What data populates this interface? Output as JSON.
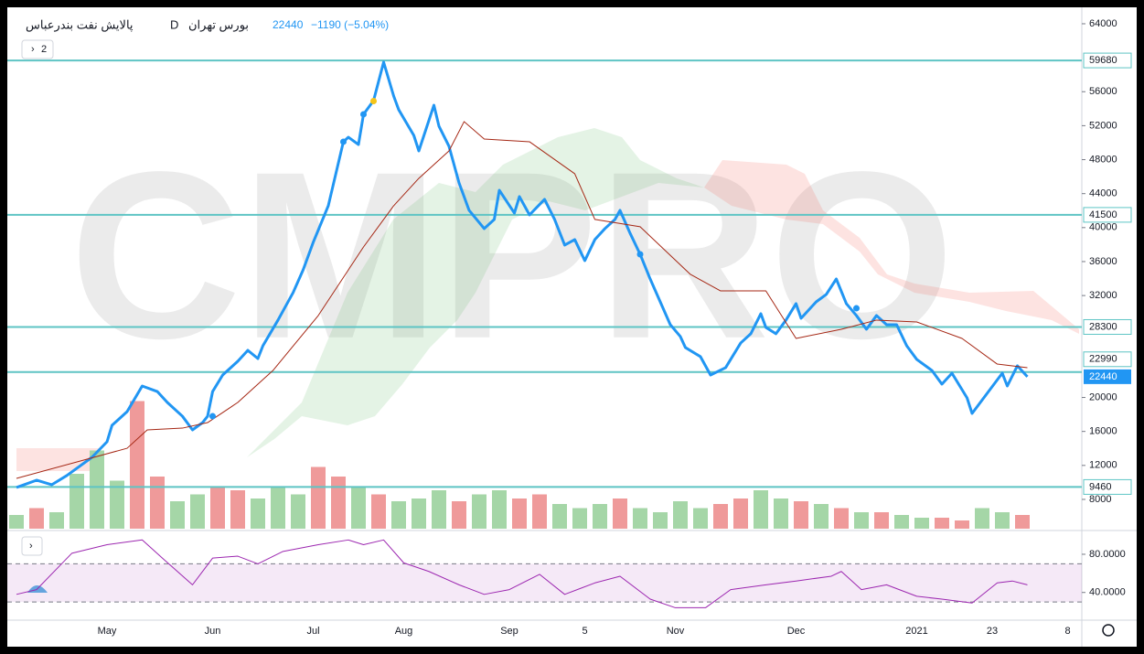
{
  "header": {
    "symbol": "پالایش نفت بندرعباس",
    "interval": "D",
    "exchange": "بورس تهران",
    "price": 22440,
    "change": "−1190 (−5.04%)"
  },
  "watermark": "CMPRO",
  "legend_toggle": "2",
  "chart_data": [
    {
      "type": "line",
      "xlim": [
        0,
        212
      ],
      "ylim": [
        4550,
        65720
      ],
      "xticks": [
        {
          "value": 18,
          "label": "May"
        },
        {
          "value": 39,
          "label": "Jun"
        },
        {
          "value": 59,
          "label": "Jul"
        },
        {
          "value": 77,
          "label": "Aug"
        },
        {
          "value": 98,
          "label": "Sep"
        },
        {
          "value": 113,
          "label": "5"
        },
        {
          "value": 131,
          "label": "Nov"
        },
        {
          "value": 155,
          "label": "Dec"
        },
        {
          "value": 179,
          "label": "2021"
        },
        {
          "value": 194,
          "label": "23"
        },
        {
          "value": 209,
          "label": "8"
        }
      ],
      "yticks": [
        64000,
        56000,
        52000,
        48000,
        44000,
        40000,
        36000,
        32000,
        20000,
        16000,
        12000,
        8000
      ],
      "series": [
        {
          "color": "#2196f3",
          "x": [
            0,
            4,
            7,
            10,
            15,
            18,
            19,
            22,
            25,
            28,
            30,
            33,
            35,
            37,
            38,
            39,
            41,
            44,
            46,
            48,
            49,
            52,
            55,
            57,
            59,
            62,
            65,
            66,
            68,
            69,
            71,
            73,
            75,
            76,
            79,
            80,
            83,
            84,
            86,
            88,
            90,
            93,
            95,
            96,
            99,
            100,
            102,
            105,
            107,
            109,
            111,
            113,
            115,
            117,
            119,
            120,
            122,
            124,
            126,
            128,
            130,
            132,
            133,
            136,
            138,
            141,
            142,
            144,
            146,
            148,
            149,
            151,
            153,
            155,
            156,
            159,
            161,
            163,
            165,
            167,
            169,
            171,
            173,
            175,
            177,
            179,
            182,
            184,
            186,
            189,
            190,
            193,
            196,
            197,
            199,
            201
          ],
          "values": [
            9400,
            10260,
            9720,
            10800,
            12950,
            14780,
            16720,
            18330,
            21350,
            20700,
            19410,
            17790,
            16180,
            17040,
            17790,
            20700,
            22640,
            24260,
            25550,
            24580,
            26090,
            29110,
            32340,
            35030,
            38260,
            42570,
            50110,
            50640,
            49780,
            53340,
            54950,
            59480,
            55490,
            53880,
            50860,
            49030,
            54410,
            51940,
            49570,
            45260,
            42030,
            39880,
            40960,
            44400,
            41710,
            43650,
            41500,
            43330,
            40960,
            37940,
            38590,
            36110,
            38590,
            39880,
            40960,
            42030,
            39340,
            36860,
            33950,
            31260,
            28570,
            27170,
            25880,
            24800,
            22640,
            23510,
            24480,
            26420,
            27500,
            29860,
            28250,
            27500,
            29110,
            31050,
            29320,
            31260,
            32130,
            33950,
            31050,
            29650,
            28030,
            29650,
            28570,
            28570,
            26090,
            24480,
            23190,
            21570,
            22860,
            19950,
            18120,
            20490,
            22860,
            21350,
            23730,
            22440
          ]
        },
        {
          "color": "#a52714",
          "x": [
            0,
            22,
            26,
            33,
            38,
            44,
            51,
            60,
            69,
            75,
            80,
            86,
            89,
            93,
            102,
            111,
            115,
            124,
            134,
            140,
            149,
            155,
            164,
            171,
            179,
            188,
            195,
            201
          ],
          "values": [
            10470,
            14020,
            16180,
            16390,
            17040,
            19410,
            23180,
            29640,
            37720,
            42570,
            45800,
            49030,
            52480,
            50430,
            50110,
            46340,
            40960,
            40100,
            34490,
            32550,
            32550,
            26950,
            28030,
            29110,
            28890,
            26950,
            23930,
            23500
          ]
        }
      ],
      "levels": {
        "values": [
          59680,
          41500,
          28300,
          22990,
          9460
        ],
        "color": "#5ec4c4"
      },
      "markers": {
        "x": [
          39,
          65,
          69,
          71,
          124,
          167
        ],
        "values": [
          17790,
          50110,
          53340,
          54900,
          36860,
          30500
        ],
        "colors": [
          "#2196f3",
          "#2196f3",
          "#2196f3",
          "#f5c518",
          "#2196f3",
          "#2196f3"
        ]
      },
      "volume": {
        "ylim": [
          0,
          100
        ],
        "x": [
          0,
          4,
          8,
          12,
          16,
          20,
          24,
          28,
          32,
          36,
          40,
          44,
          48,
          52,
          56,
          60,
          64,
          68,
          72,
          76,
          80,
          84,
          88,
          92,
          96,
          100,
          104,
          108,
          112,
          116,
          120,
          124,
          128,
          132,
          136,
          140,
          144,
          148,
          152,
          156,
          160,
          164,
          168,
          172,
          176,
          180,
          184,
          188,
          192,
          196,
          200
        ],
        "values": [
          10,
          15,
          12,
          40,
          57,
          35,
          93,
          38,
          20,
          25,
          30,
          28,
          22,
          30,
          25,
          45,
          38,
          30,
          25,
          20,
          22,
          28,
          20,
          25,
          28,
          22,
          25,
          18,
          15,
          18,
          22,
          15,
          12,
          20,
          15,
          18,
          22,
          28,
          22,
          20,
          18,
          15,
          12,
          12,
          10,
          8,
          8,
          6,
          15,
          12,
          10
        ],
        "colors": [
          "#a5d6a7",
          "#ef9a9a",
          "#a5d6a7",
          "#a5d6a7",
          "#a5d6a7",
          "#a5d6a7",
          "#ef9a9a",
          "#ef9a9a",
          "#a5d6a7",
          "#a5d6a7",
          "#ef9a9a",
          "#ef9a9a",
          "#a5d6a7",
          "#a5d6a7",
          "#a5d6a7",
          "#ef9a9a",
          "#ef9a9a",
          "#a5d6a7",
          "#ef9a9a",
          "#a5d6a7",
          "#a5d6a7",
          "#a5d6a7",
          "#ef9a9a",
          "#a5d6a7",
          "#a5d6a7",
          "#ef9a9a",
          "#ef9a9a",
          "#a5d6a7",
          "#a5d6a7",
          "#a5d6a7",
          "#ef9a9a",
          "#a5d6a7",
          "#a5d6a7",
          "#a5d6a7",
          "#a5d6a7",
          "#ef9a9a",
          "#ef9a9a",
          "#a5d6a7",
          "#a5d6a7",
          "#ef9a9a",
          "#a5d6a7",
          "#ef9a9a",
          "#a5d6a7",
          "#ef9a9a",
          "#a5d6a7",
          "#a5d6a7",
          "#ef9a9a",
          "#ef9a9a",
          "#a5d6a7",
          "#a5d6a7",
          "#ef9a9a"
        ]
      }
    },
    {
      "type": "line",
      "xlim": [
        0,
        212
      ],
      "ylim": [
        11,
        102
      ],
      "yticks": [
        {
          "value": 80,
          "label": "80.0000"
        },
        {
          "value": 40,
          "label": "40.0000"
        }
      ],
      "band": [
        30,
        70
      ],
      "band_color": "#9c27b0",
      "series": [
        {
          "color": "#9c27b0",
          "x": [
            0,
            4,
            11,
            18,
            25,
            29,
            35,
            39,
            44,
            48,
            53,
            60,
            66,
            69,
            73,
            77,
            82,
            88,
            93,
            98,
            104,
            109,
            115,
            120,
            126,
            131,
            137,
            142,
            149,
            155,
            162,
            164,
            168,
            173,
            179,
            184,
            190,
            195,
            198,
            201
          ],
          "values": [
            38,
            43,
            81,
            90,
            95,
            76,
            48,
            76,
            78,
            70,
            83,
            90,
            95,
            90,
            95,
            71,
            62,
            48,
            38,
            43,
            59,
            38,
            50,
            57,
            33,
            24,
            24,
            43,
            48,
            52,
            57,
            62,
            43,
            48,
            36,
            33,
            29,
            50,
            52,
            48
          ]
        }
      ]
    }
  ]
}
